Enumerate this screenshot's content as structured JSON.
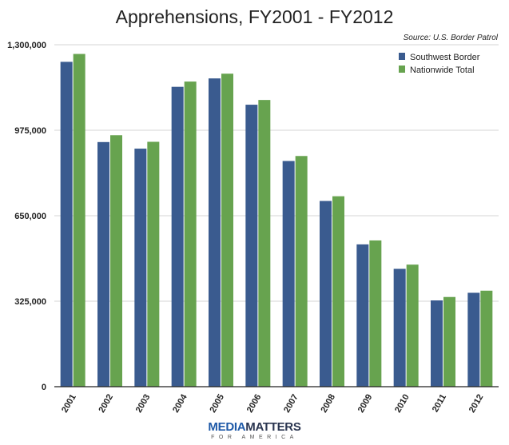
{
  "chart_data": {
    "type": "bar",
    "title": "Apprehensions, FY2001 - FY2012",
    "subtitle": "Source: U.S. Border Patrol",
    "categories": [
      "2001",
      "2002",
      "2003",
      "2004",
      "2005",
      "2006",
      "2007",
      "2008",
      "2009",
      "2010",
      "2011",
      "2012"
    ],
    "series": [
      {
        "name": "Southwest Border",
        "color": "#3a5b8f",
        "values": [
          1235000,
          930000,
          905000,
          1140000,
          1172000,
          1072000,
          858000,
          706000,
          541000,
          448000,
          328000,
          357000
        ]
      },
      {
        "name": "Nationwide Total",
        "color": "#67a34f",
        "values": [
          1265000,
          956000,
          931000,
          1160000,
          1190000,
          1090000,
          877000,
          724000,
          556000,
          464000,
          341000,
          365000
        ]
      }
    ],
    "yticks": [
      "0",
      "325,000",
      "650,000",
      "975,000",
      "1,300,000"
    ],
    "ytick_values": [
      0,
      325000,
      650000,
      975000,
      1300000
    ],
    "ylim": [
      0,
      1300000
    ],
    "xlabel": "",
    "ylabel": "",
    "grid": true,
    "legend_position": "top-right"
  },
  "logo": {
    "word1": "MEDIA",
    "word2": "MATTERS",
    "sub": "FOR AMERICA"
  }
}
